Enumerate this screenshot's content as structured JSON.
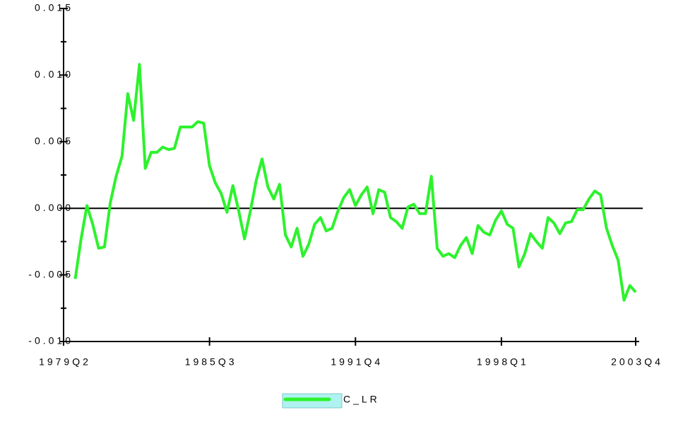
{
  "chart_data": {
    "type": "line",
    "x": [
      "1979Q2",
      "1979Q3",
      "1979Q4",
      "1980Q1",
      "1980Q2",
      "1980Q3",
      "1980Q4",
      "1981Q1",
      "1981Q2",
      "1981Q3",
      "1981Q4",
      "1982Q1",
      "1982Q2",
      "1982Q3",
      "1982Q4",
      "1983Q1",
      "1983Q2",
      "1983Q3",
      "1983Q4",
      "1984Q1",
      "1984Q2",
      "1984Q3",
      "1984Q4",
      "1985Q1",
      "1985Q2",
      "1985Q3",
      "1985Q4",
      "1986Q1",
      "1986Q2",
      "1986Q3",
      "1986Q4",
      "1987Q1",
      "1987Q2",
      "1987Q3",
      "1987Q4",
      "1988Q1",
      "1988Q2",
      "1988Q3",
      "1988Q4",
      "1989Q1",
      "1989Q2",
      "1989Q3",
      "1989Q4",
      "1990Q1",
      "1990Q2",
      "1990Q3",
      "1990Q4",
      "1991Q1",
      "1991Q2",
      "1991Q3",
      "1991Q4",
      "1992Q1",
      "1992Q2",
      "1992Q3",
      "1992Q4",
      "1993Q1",
      "1993Q2",
      "1993Q3",
      "1993Q4",
      "1994Q1",
      "1994Q2",
      "1994Q3",
      "1994Q4",
      "1995Q1",
      "1995Q2",
      "1995Q3",
      "1995Q4",
      "1996Q1",
      "1996Q2",
      "1996Q3",
      "1996Q4",
      "1997Q1",
      "1997Q2",
      "1997Q3",
      "1997Q4",
      "1998Q1",
      "1998Q2",
      "1998Q3",
      "1998Q4",
      "1999Q1",
      "1999Q2",
      "1999Q3",
      "1999Q4",
      "2000Q1",
      "2000Q2",
      "2000Q3",
      "2000Q4",
      "2001Q1",
      "2001Q2",
      "2001Q3",
      "2001Q4",
      "2002Q1",
      "2002Q2",
      "2002Q3",
      "2002Q4",
      "2003Q1",
      "2003Q2",
      "2003Q3",
      "2003Q4"
    ],
    "series": [
      {
        "name": "C_LR",
        "color": "#2df22d",
        "values": [
          null,
          null,
          -0.0053,
          -0.0023,
          0.0002,
          -0.0012,
          -0.003,
          -0.0029,
          0.0004,
          0.0024,
          0.0039,
          0.0086,
          0.0066,
          0.0108,
          0.003,
          0.0042,
          0.0042,
          0.0046,
          0.0044,
          0.0045,
          0.0061,
          0.0061,
          0.0061,
          0.0065,
          0.0064,
          0.0032,
          0.0019,
          0.0011,
          -0.0003,
          0.0017,
          -0.0002,
          -0.0023,
          -0.0002,
          0.0021,
          0.0037,
          0.0016,
          0.0007,
          0.0018,
          -0.002,
          -0.0029,
          -0.0015,
          -0.0036,
          -0.0027,
          -0.0012,
          -0.0007,
          -0.0017,
          -0.0015,
          -0.0002,
          0.0008,
          0.0014,
          0.0002,
          0.001,
          0.0016,
          -0.0004,
          0.0014,
          0.0012,
          -0.0007,
          -0.001,
          -0.0015,
          0.0001,
          0.0003,
          -0.0004,
          -0.0004,
          0.0024,
          -0.003,
          -0.0036,
          -0.0034,
          -0.0037,
          -0.0028,
          -0.0022,
          -0.0034,
          -0.0013,
          -0.0018,
          -0.002,
          -0.0009,
          -0.0002,
          -0.0012,
          -0.0015,
          -0.0044,
          -0.0034,
          -0.0019,
          -0.0025,
          -0.003,
          -0.0007,
          -0.0011,
          -0.0019,
          -0.0011,
          -0.001,
          -0.0001,
          -0.0001,
          0.0007,
          0.0013,
          0.001,
          -0.0015,
          -0.0028,
          -0.0039,
          -0.0069,
          -0.0058,
          -0.0063
        ]
      }
    ],
    "xticks": [
      "1979Q2",
      "1985Q3",
      "1991Q4",
      "1998Q1",
      "2003Q4"
    ],
    "ylim": [
      -0.01,
      0.015
    ],
    "yticks": [
      {
        "value": -0.01,
        "label": "-0.010"
      },
      -0.005,
      {
        "value": 0,
        "label": "0.000"
      },
      0.005,
      {
        "value": 0.01,
        "label": "0.010"
      },
      0.015
    ],
    "yminor": [
      -0.0075,
      -0.0025,
      0.0025,
      0.0075,
      0.0125
    ],
    "zero_line": true
  }
}
